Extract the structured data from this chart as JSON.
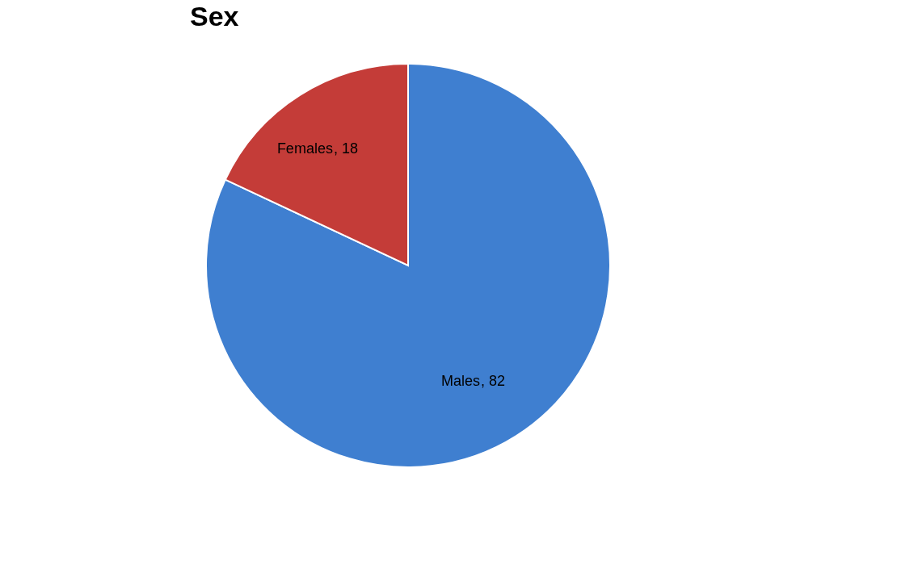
{
  "chart_data": {
    "type": "pie",
    "title": "Sex",
    "categories": [
      "Males",
      "Females"
    ],
    "values": [
      82,
      18
    ],
    "colors": [
      "#3f7fd0",
      "#c43c38"
    ],
    "value_labels": [
      ", 82",
      ", 18"
    ],
    "legend": false
  }
}
